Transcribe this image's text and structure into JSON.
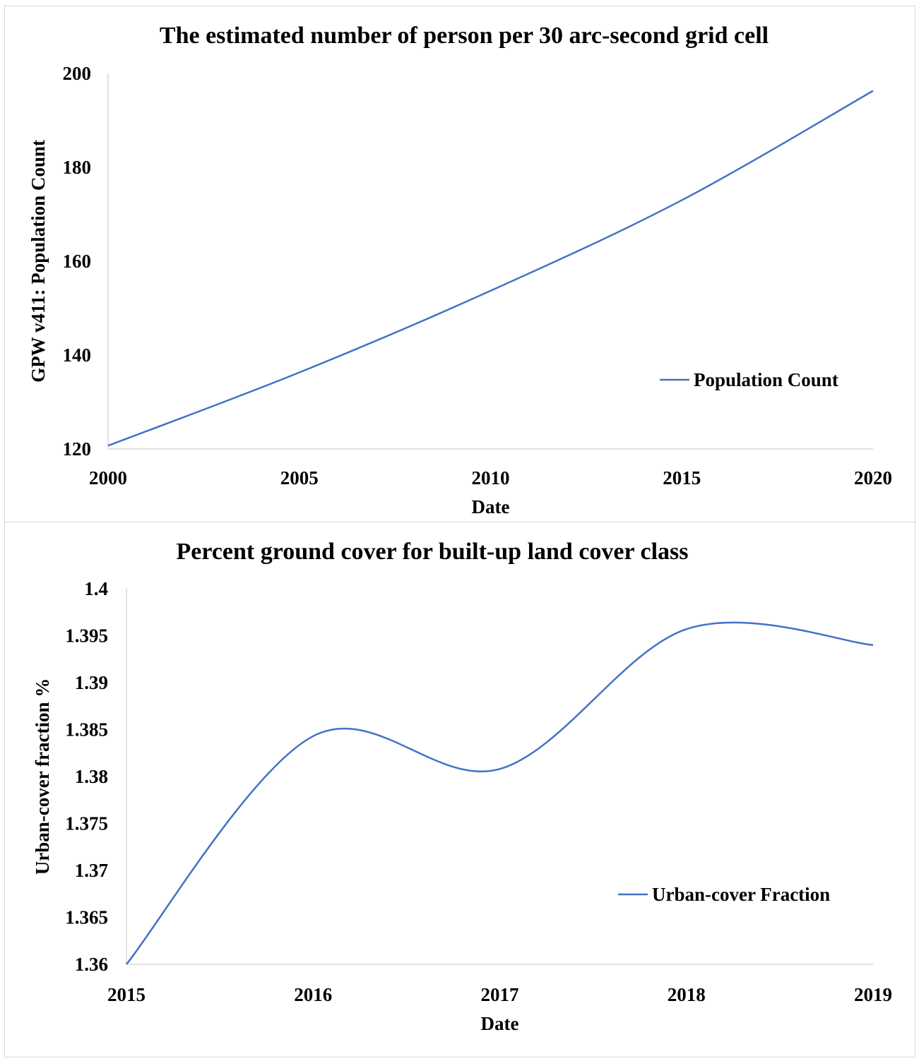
{
  "chart_data": [
    {
      "type": "line",
      "title": "The estimated number of person per 30 arc-second grid cell",
      "xlabel": "Date",
      "ylabel": "GPW v411: Population Count",
      "x": [
        2000,
        2005,
        2010,
        2015,
        2020
      ],
      "xlim": [
        2000,
        2020
      ],
      "ylim": [
        120,
        200
      ],
      "xticks": [
        "2000",
        "2005",
        "2010",
        "2015",
        "2020"
      ],
      "yticks": [
        "120",
        "140",
        "160",
        "180",
        "200"
      ],
      "series": [
        {
          "name": "Population Count",
          "values": [
            120.7,
            136.3,
            153.7,
            173.0,
            196.3
          ],
          "color": "#4472c4",
          "smooth": true
        }
      ],
      "legend": "right-lower",
      "grid": false
    },
    {
      "type": "line",
      "title": "Percent ground cover for built-up land cover class",
      "xlabel": "Date",
      "ylabel": "Urban-cover fraction %",
      "x": [
        2015,
        2016,
        2017,
        2018,
        2019
      ],
      "xlim": [
        2015,
        2019
      ],
      "ylim": [
        1.36,
        1.4
      ],
      "xticks": [
        "2015",
        "2016",
        "2017",
        "2018",
        "2019"
      ],
      "yticks": [
        "1.36",
        "1.365",
        "1.37",
        "1.375",
        "1.38",
        "1.385",
        "1.39",
        "1.395",
        "1.4"
      ],
      "series": [
        {
          "name": "Urban-cover Fraction",
          "values": [
            1.36,
            1.3843,
            1.3808,
            1.3957,
            1.394
          ],
          "color": "#4472c4",
          "smooth": true
        }
      ],
      "legend": "right-lower",
      "grid": false
    }
  ]
}
